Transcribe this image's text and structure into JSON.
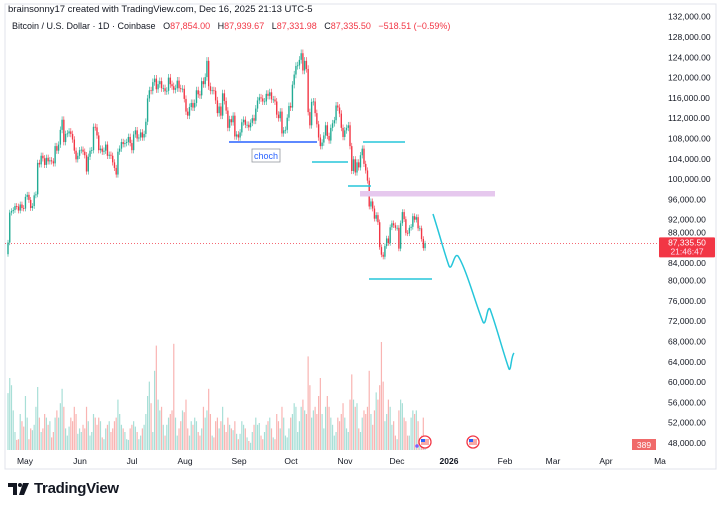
{
  "header": {
    "credit": "brainsonny17 created with TradingView.com, Dec 16, 2025 21:13 UTC-5"
  },
  "legend": {
    "symbol": "Bitcoin / U.S. Dollar · 1D · Coinbase",
    "o_label": "O",
    "o": "87,854.00",
    "h_label": "H",
    "h": "87,939.67",
    "l_label": "L",
    "l": "87,331.98",
    "c_label": "C",
    "c": "87,335.50",
    "change": "−518.51 (−0.59%)"
  },
  "price_tag": {
    "price": "87,335.50",
    "countdown": "21:46:47"
  },
  "volume_tag": "389",
  "annotation": {
    "choch": "choch"
  },
  "brand": "TradingView",
  "colors": {
    "up": "#22ab94",
    "down": "#f23645",
    "choch_line": "#2962ff",
    "levels": "#26c6da",
    "zone": "#e6c8ee"
  },
  "icons": [
    "us-flag-event-icon",
    "us-flag-event-icon",
    "tradingview-logo-icon"
  ],
  "chart_data": {
    "type": "candlestick",
    "symbol": "BTCUSD",
    "interval": "1D",
    "start_date": "2025-04-21",
    "end_date": "2025-12-16",
    "ylim": [
      46000,
      134000
    ],
    "y_ticks": [
      "132,000.00",
      "128,000.00",
      "124,000.00",
      "120,000.00",
      "116,000.00",
      "112,000.00",
      "108,000.00",
      "104,000.00",
      "100,000.00",
      "96,000.00",
      "92,000.00",
      "88,000.00",
      "84,000.00",
      "80,000.00",
      "76,000.00",
      "72,000.00",
      "68,000.00",
      "64,000.00",
      "60,000.00",
      "56,000.00",
      "52,000.00",
      "48,000.00"
    ],
    "x_ticks": [
      {
        "label": "May",
        "bold": false
      },
      {
        "label": "Jun",
        "bold": false
      },
      {
        "label": "Jul",
        "bold": false
      },
      {
        "label": "Aug",
        "bold": false
      },
      {
        "label": "Sep",
        "bold": false
      },
      {
        "label": "Oct",
        "bold": false
      },
      {
        "label": "Nov",
        "bold": false
      },
      {
        "label": "Dec",
        "bold": false
      },
      {
        "label": "2026",
        "bold": true
      },
      {
        "label": "Feb",
        "bold": false
      },
      {
        "label": "Mar",
        "bold": false
      },
      {
        "label": "Apr",
        "bold": false
      },
      {
        "label": "Ma",
        "bold": false
      }
    ],
    "first_open": 85200,
    "closes_thousands": [
      87.5,
      93.4,
      93.7,
      93.9,
      94.7,
      94.6,
      93.8,
      95.0,
      94.3,
      94.2,
      96.5,
      96.9,
      95.9,
      94.3,
      94.7,
      96.8,
      97.0,
      103.2,
      102.9,
      104.6,
      104.1,
      102.8,
      104.2,
      103.5,
      103.7,
      103.5,
      103.1,
      106.5,
      105.6,
      106.8,
      109.7,
      111.7,
      107.3,
      108.9,
      109.0,
      109.4,
      108.9,
      107.8,
      105.6,
      103.9,
      104.6,
      105.7,
      105.8,
      105.4,
      104.7,
      101.5,
      104.4,
      105.6,
      105.7,
      110.3,
      110.2,
      108.6,
      105.7,
      106.0,
      105.4,
      105.6,
      106.8,
      104.6,
      104.8,
      104.6,
      103.3,
      102.2,
      100.9,
      105.4,
      106.0,
      107.3,
      106.9,
      107.1,
      107.3,
      108.3,
      107.1,
      105.7,
      108.8,
      109.6,
      108.0,
      108.2,
      109.2,
      108.2,
      108.9,
      111.3,
      115.9,
      117.5,
      117.4,
      119.1,
      119.8,
      117.7,
      118.7,
      119.3,
      117.9,
      117.9,
      117.3,
      117.4,
      120.0,
      118.7,
      118.3,
      117.6,
      117.9,
      119.4,
      117.9,
      117.8,
      117.8,
      115.8,
      113.3,
      112.5,
      114.2,
      115.0,
      114.1,
      115.0,
      117.5,
      116.7,
      116.5,
      119.3,
      118.7,
      120.1,
      123.3,
      118.3,
      117.4,
      117.5,
      117.4,
      115.5,
      113.0,
      114.3,
      112.5,
      116.9,
      115.4,
      113.5,
      110.1,
      111.8,
      111.2,
      112.5,
      108.4,
      108.8,
      108.2,
      109.2,
      111.2,
      111.7,
      110.7,
      110.7,
      110.2,
      111.1,
      112.0,
      111.5,
      113.9,
      115.5,
      116.1,
      115.9,
      115.3,
      115.3,
      116.8,
      116.4,
      117.1,
      115.7,
      115.7,
      115.3,
      112.7,
      112.0,
      113.3,
      109.0,
      109.6,
      109.7,
      112.1,
      114.4,
      114.1,
      118.6,
      120.6,
      122.3,
      122.4,
      123.5,
      124.8,
      121.4,
      123.3,
      121.7,
      113.2,
      110.6,
      115.2,
      115.3,
      113.0,
      110.8,
      108.2,
      106.5,
      107.2,
      108.6,
      110.6,
      108.5,
      107.6,
      110.1,
      111.0,
      111.6,
      114.5,
      114.1,
      112.9,
      110.1,
      108.3,
      109.6,
      110.1,
      110.6,
      106.5,
      101.6,
      103.9,
      101.3,
      103.3,
      102.3,
      104.7,
      106.0,
      103.0,
      101.7,
      99.7,
      94.6,
      95.6,
      94.2,
      92.2,
      92.9,
      91.5,
      86.6,
      85.1,
      84.7,
      86.8,
      88.3,
      87.4,
      90.5,
      91.3,
      90.9,
      90.4,
      90.4,
      86.3,
      91.3,
      93.5,
      92.1,
      89.4,
      89.3,
      90.4,
      90.6,
      92.7,
      92.0,
      92.5,
      90.3,
      90.3,
      88.2,
      86.4,
      87.3355
    ],
    "volume": [
      15800,
      20000,
      18000,
      11000,
      5000,
      2800,
      3000,
      10000,
      8000,
      6500,
      15000,
      9000,
      3000,
      6000,
      5500,
      7000,
      12000,
      17500,
      9000,
      5000,
      6000,
      10000,
      9000,
      7000,
      8000,
      3500,
      5000,
      9000,
      11000,
      9000,
      13000,
      17000,
      12000,
      6000,
      4000,
      6500,
      9000,
      8000,
      12000,
      10000,
      4500,
      6000,
      5000,
      7000,
      6000,
      12000,
      8000,
      4000,
      5000,
      10000,
      9000,
      7000,
      9000,
      8000,
      3500,
      3000,
      6000,
      7000,
      8000,
      5000,
      6000,
      8000,
      9000,
      14000,
      10000,
      7000,
      6000,
      5000,
      3000,
      2800,
      6000,
      7000,
      8000,
      6500,
      5000,
      3000,
      4000,
      6000,
      7000,
      10000,
      15000,
      19000,
      13000,
      5000,
      22000,
      29000,
      14000,
      11000,
      12000,
      7000,
      4000,
      7000,
      9000,
      10000,
      11000,
      29500,
      9000,
      4000,
      6000,
      8000,
      11000,
      10500,
      14000,
      6000,
      4000,
      8000,
      7000,
      9000,
      8000,
      5000,
      4000,
      6000,
      12000,
      9000,
      11000,
      17000,
      10000,
      4000,
      3500,
      8000,
      9000,
      6000,
      8000,
      12000,
      7000,
      5000,
      9000,
      7000,
      6000,
      5500,
      8000,
      4500,
      3000,
      4500,
      8000,
      7000,
      6000,
      3500,
      2500,
      2000,
      5000,
      7000,
      9000,
      7000,
      7500,
      4000,
      3000,
      5000,
      7000,
      8000,
      9000,
      6000,
      3500,
      3000,
      10000,
      8000,
      6000,
      12000,
      9000,
      4000,
      3500,
      6000,
      9000,
      10000,
      13000,
      12000,
      5000,
      8000,
      12000,
      14000,
      11000,
      10000,
      26000,
      18000,
      9000,
      11000,
      12000,
      10000,
      15000,
      20000,
      10000,
      6000,
      12000,
      15000,
      12000,
      9000,
      7000,
      4000,
      5000,
      9000,
      8000,
      10000,
      13000,
      9000,
      6000,
      5000,
      14000,
      21000,
      14000,
      12000,
      13000,
      6000,
      5000,
      9000,
      11000,
      10000,
      12000,
      22000,
      10000,
      7000,
      11000,
      16000,
      14000,
      18000,
      30000,
      19000,
      8000,
      10000,
      14000,
      12000,
      7000,
      8000,
      4000,
      3000,
      11000,
      14000,
      13000,
      9000,
      8000,
      4000,
      4000,
      9000,
      11000,
      10000,
      11000,
      8000,
      3000,
      4000,
      9000,
      389
    ],
    "last_price": 87335.5,
    "grid": false,
    "legend": "top-left"
  }
}
